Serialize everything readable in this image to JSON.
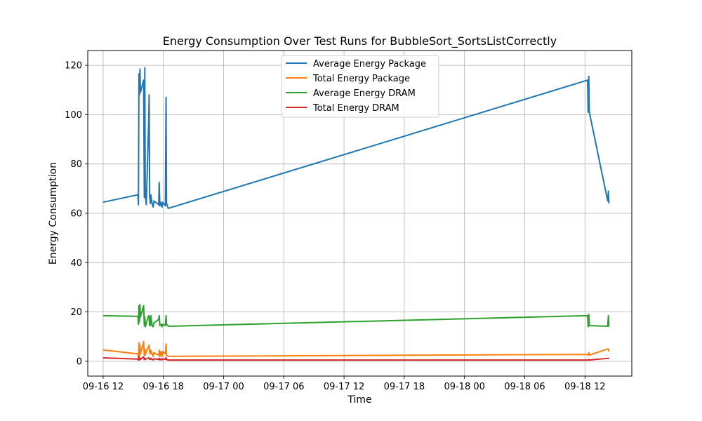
{
  "chart_data": {
    "type": "line",
    "title": "Energy Consumption Over Test Runs for BubbleSort_SortsListCorrectly",
    "xlabel": "Time",
    "ylabel": "Energy Consumption",
    "xlim": [
      "2024-09-16 10:28",
      "2024-09-18 16:40"
    ],
    "ylim": [
      -6,
      126
    ],
    "xticks": [
      "2024-09-16 12:00",
      "2024-09-16 18:00",
      "2024-09-17 00:00",
      "2024-09-17 06:00",
      "2024-09-17 12:00",
      "2024-09-17 18:00",
      "2024-09-18 00:00",
      "2024-09-18 06:00",
      "2024-09-18 12:00"
    ],
    "xtick_labels": [
      "09-16 12",
      "09-16 18",
      "09-17 00",
      "09-17 06",
      "09-17 12",
      "09-17 18",
      "09-18 00",
      "09-18 06",
      "09-18 12"
    ],
    "yticks": [
      0,
      20,
      40,
      60,
      80,
      100,
      120
    ],
    "ytick_labels": [
      "0",
      "20",
      "40",
      "60",
      "80",
      "100",
      "120"
    ],
    "grid": true,
    "legend_position": "top-center",
    "series": [
      {
        "name": "Average Energy Package",
        "color": "#1f77b4",
        "points": [
          [
            "2024-09-16 11:59",
            64.5
          ],
          [
            "2024-09-16 15:28",
            67.5
          ],
          [
            "2024-09-16 15:31",
            63.5
          ],
          [
            "2024-09-16 15:34",
            116.5
          ],
          [
            "2024-09-16 15:37",
            108
          ],
          [
            "2024-09-16 15:40",
            118.5
          ],
          [
            "2024-09-16 15:43",
            109
          ],
          [
            "2024-09-16 16:02",
            114
          ],
          [
            "2024-09-16 16:06",
            66.5
          ],
          [
            "2024-09-16 16:09",
            119
          ],
          [
            "2024-09-16 16:12",
            67
          ],
          [
            "2024-09-16 16:18",
            63.5
          ],
          [
            "2024-09-16 16:32",
            97
          ],
          [
            "2024-09-16 16:35",
            108
          ],
          [
            "2024-09-16 16:38",
            67
          ],
          [
            "2024-09-16 16:42",
            64
          ],
          [
            "2024-09-16 16:45",
            67.5
          ],
          [
            "2024-09-16 16:52",
            64
          ],
          [
            "2024-09-16 16:59",
            62.5
          ],
          [
            "2024-09-16 17:03",
            65
          ],
          [
            "2024-09-16 17:32",
            63.5
          ],
          [
            "2024-09-16 17:35",
            72.5
          ],
          [
            "2024-09-16 17:39",
            63
          ],
          [
            "2024-09-16 17:45",
            64.5
          ],
          [
            "2024-09-16 17:52",
            62.5
          ],
          [
            "2024-09-16 17:56",
            64.5
          ],
          [
            "2024-09-16 18:12",
            63
          ],
          [
            "2024-09-16 18:16",
            107
          ],
          [
            "2024-09-16 18:19",
            64
          ],
          [
            "2024-09-16 18:29",
            62
          ],
          [
            "2024-09-18 12:16",
            114
          ],
          [
            "2024-09-18 12:19",
            101
          ],
          [
            "2024-09-18 12:23",
            115.5
          ],
          [
            "2024-09-18 12:26",
            101
          ],
          [
            "2024-09-18 14:16",
            65
          ],
          [
            "2024-09-18 14:20",
            69
          ],
          [
            "2024-09-18 14:23",
            64
          ]
        ]
      },
      {
        "name": "Total Energy Package",
        "color": "#ff7f0e",
        "points": [
          [
            "2024-09-16 11:59",
            4.6
          ],
          [
            "2024-09-16 15:28",
            3
          ],
          [
            "2024-09-16 15:31",
            1.5
          ],
          [
            "2024-09-16 15:34",
            7.5
          ],
          [
            "2024-09-16 15:37",
            2
          ],
          [
            "2024-09-16 15:40",
            6.5
          ],
          [
            "2024-09-16 15:43",
            3
          ],
          [
            "2024-09-16 16:02",
            8
          ],
          [
            "2024-09-16 16:06",
            2.5
          ],
          [
            "2024-09-16 16:09",
            5
          ],
          [
            "2024-09-16 16:12",
            2.5
          ],
          [
            "2024-09-16 16:18",
            4
          ],
          [
            "2024-09-16 16:32",
            6
          ],
          [
            "2024-09-16 16:35",
            6.5
          ],
          [
            "2024-09-16 16:38",
            3.5
          ],
          [
            "2024-09-16 16:42",
            3
          ],
          [
            "2024-09-16 16:45",
            4.5
          ],
          [
            "2024-09-16 16:52",
            3
          ],
          [
            "2024-09-16 16:59",
            2
          ],
          [
            "2024-09-16 17:03",
            3.5
          ],
          [
            "2024-09-16 17:32",
            2.5
          ],
          [
            "2024-09-16 17:35",
            4.5
          ],
          [
            "2024-09-16 17:39",
            2
          ],
          [
            "2024-09-16 17:45",
            4
          ],
          [
            "2024-09-16 17:52",
            2
          ],
          [
            "2024-09-16 17:56",
            4
          ],
          [
            "2024-09-16 18:12",
            3
          ],
          [
            "2024-09-16 18:16",
            7
          ],
          [
            "2024-09-16 18:19",
            2.5
          ],
          [
            "2024-09-16 18:29",
            2
          ],
          [
            "2024-09-18 12:16",
            2.8
          ],
          [
            "2024-09-18 12:19",
            2.5
          ],
          [
            "2024-09-18 12:23",
            3.5
          ],
          [
            "2024-09-18 12:26",
            2.5
          ],
          [
            "2024-09-18 14:16",
            5
          ],
          [
            "2024-09-18 14:20",
            5
          ],
          [
            "2024-09-18 14:23",
            4
          ]
        ]
      },
      {
        "name": "Average Energy DRAM",
        "color": "#2ca02c",
        "points": [
          [
            "2024-09-16 11:59",
            18.5
          ],
          [
            "2024-09-16 15:28",
            18.2
          ],
          [
            "2024-09-16 15:31",
            15
          ],
          [
            "2024-09-16 15:34",
            22.5
          ],
          [
            "2024-09-16 15:37",
            16
          ],
          [
            "2024-09-16 15:40",
            23
          ],
          [
            "2024-09-16 15:43",
            18
          ],
          [
            "2024-09-16 16:02",
            22.5
          ],
          [
            "2024-09-16 16:06",
            14.5
          ],
          [
            "2024-09-16 16:09",
            18
          ],
          [
            "2024-09-16 16:12",
            14
          ],
          [
            "2024-09-16 16:18",
            15.5
          ],
          [
            "2024-09-16 16:32",
            18.5
          ],
          [
            "2024-09-16 16:35",
            18
          ],
          [
            "2024-09-16 16:38",
            14.5
          ],
          [
            "2024-09-16 16:42",
            14.5
          ],
          [
            "2024-09-16 16:45",
            18.5
          ],
          [
            "2024-09-16 16:52",
            14.5
          ],
          [
            "2024-09-16 16:59",
            14
          ],
          [
            "2024-09-16 17:03",
            15.5
          ],
          [
            "2024-09-16 17:32",
            17
          ],
          [
            "2024-09-16 17:35",
            18.5
          ],
          [
            "2024-09-16 17:39",
            14.5
          ],
          [
            "2024-09-16 17:45",
            15
          ],
          [
            "2024-09-16 17:52",
            14
          ],
          [
            "2024-09-16 17:56",
            15
          ],
          [
            "2024-09-16 18:12",
            14.5
          ],
          [
            "2024-09-16 18:16",
            18.5
          ],
          [
            "2024-09-16 18:19",
            15
          ],
          [
            "2024-09-16 18:29",
            14.2
          ],
          [
            "2024-09-18 12:16",
            18.5
          ],
          [
            "2024-09-18 12:19",
            14
          ],
          [
            "2024-09-18 12:23",
            19
          ],
          [
            "2024-09-18 12:26",
            14.5
          ],
          [
            "2024-09-18 14:16",
            14.2
          ],
          [
            "2024-09-18 14:20",
            18.5
          ],
          [
            "2024-09-18 14:23",
            14
          ]
        ]
      },
      {
        "name": "Total Energy DRAM",
        "color": "#d62728",
        "points": [
          [
            "2024-09-16 11:59",
            1.4
          ],
          [
            "2024-09-16 15:28",
            0.9
          ],
          [
            "2024-09-16 15:31",
            0.5
          ],
          [
            "2024-09-16 15:34",
            1.8
          ],
          [
            "2024-09-16 15:37",
            0.6
          ],
          [
            "2024-09-16 15:40",
            1.2
          ],
          [
            "2024-09-16 15:43",
            0.8
          ],
          [
            "2024-09-16 16:02",
            1.8
          ],
          [
            "2024-09-16 16:06",
            0.7
          ],
          [
            "2024-09-16 16:09",
            1.2
          ],
          [
            "2024-09-16 16:12",
            0.8
          ],
          [
            "2024-09-16 16:18",
            1.0
          ],
          [
            "2024-09-16 16:32",
            1.4
          ],
          [
            "2024-09-16 16:35",
            1.3
          ],
          [
            "2024-09-16 16:38",
            0.8
          ],
          [
            "2024-09-16 16:42",
            0.8
          ],
          [
            "2024-09-16 16:45",
            1.2
          ],
          [
            "2024-09-16 16:52",
            0.8
          ],
          [
            "2024-09-16 16:59",
            0.6
          ],
          [
            "2024-09-16 17:03",
            1.0
          ],
          [
            "2024-09-16 17:32",
            0.8
          ],
          [
            "2024-09-16 17:35",
            1.2
          ],
          [
            "2024-09-16 17:39",
            0.6
          ],
          [
            "2024-09-16 17:45",
            1.0
          ],
          [
            "2024-09-16 17:52",
            0.6
          ],
          [
            "2024-09-16 17:56",
            1.0
          ],
          [
            "2024-09-16 18:12",
            0.8
          ],
          [
            "2024-09-16 18:16",
            1.5
          ],
          [
            "2024-09-16 18:19",
            0.7
          ],
          [
            "2024-09-16 18:29",
            0.5
          ],
          [
            "2024-09-18 12:16",
            0.5
          ],
          [
            "2024-09-18 12:19",
            0.5
          ],
          [
            "2024-09-18 12:23",
            0.7
          ],
          [
            "2024-09-18 12:26",
            0.5
          ],
          [
            "2024-09-18 14:16",
            1.2
          ],
          [
            "2024-09-18 14:20",
            1.2
          ],
          [
            "2024-09-18 14:23",
            1.0
          ]
        ]
      }
    ]
  }
}
